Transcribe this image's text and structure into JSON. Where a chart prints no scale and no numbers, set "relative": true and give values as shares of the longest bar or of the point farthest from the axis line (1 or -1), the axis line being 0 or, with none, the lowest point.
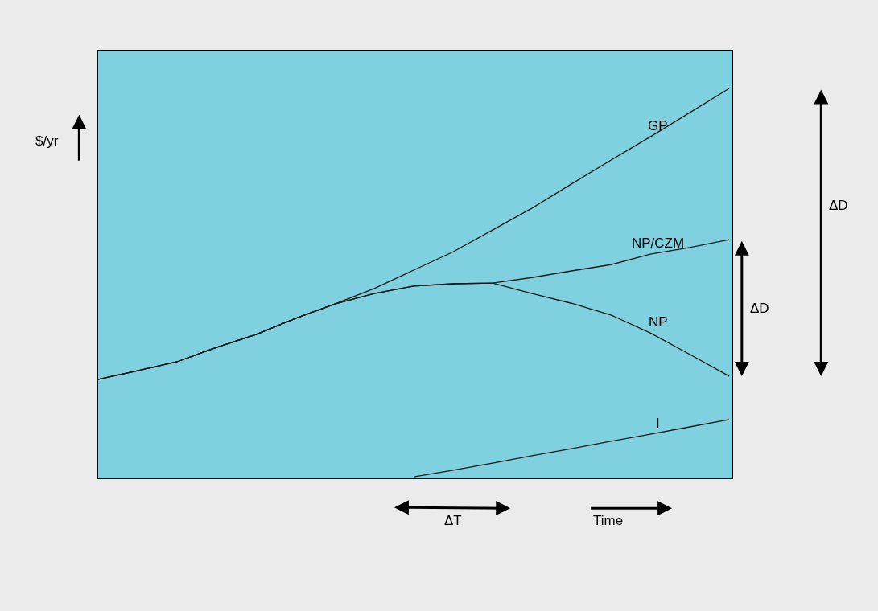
{
  "chart_data": {
    "type": "line",
    "relative": true,
    "xlabel": "Time",
    "ylabel": "$/yr",
    "categories": [
      null,
      null,
      null,
      null,
      null,
      null,
      null,
      null,
      null,
      null,
      null,
      null,
      null,
      null,
      null,
      null,
      null
    ],
    "series": [
      {
        "name": "GP",
        "color": "#1a1a1a",
        "values": [
          0.254,
          0.276,
          0.299,
          0.336,
          0.369,
          0.41,
          0.447,
          0.487,
          0.534,
          0.581,
          0.637,
          0.693,
          0.755,
          0.816,
          0.876,
          0.938,
          1.0
        ]
      },
      {
        "name": "NP/CZM",
        "color": "#1a1a1a",
        "values": [
          0.254,
          0.276,
          0.299,
          0.336,
          0.369,
          0.41,
          0.447,
          0.474,
          0.493,
          0.499,
          0.501,
          0.515,
          0.532,
          0.548,
          0.575,
          0.592,
          0.612
        ]
      },
      {
        "name": "NP",
        "color": "#1a1a1a",
        "values": [
          0.254,
          0.276,
          0.299,
          0.336,
          0.369,
          0.41,
          0.447,
          0.474,
          0.493,
          0.499,
          0.501,
          0.474,
          0.449,
          0.419,
          0.373,
          0.318,
          0.262
        ]
      },
      {
        "name": "I",
        "color": "#1a1a1a",
        "values": [
          null,
          null,
          null,
          null,
          null,
          null,
          null,
          null,
          0.004,
          0.021,
          0.039,
          0.058,
          0.076,
          0.095,
          0.113,
          0.132,
          0.151
        ]
      }
    ],
    "annotations": [
      "ΔT",
      "ΔD",
      "ΔD"
    ],
    "marker": "none",
    "line_style": "solid",
    "grid": false,
    "legend": false,
    "tick_labels": false
  }
}
